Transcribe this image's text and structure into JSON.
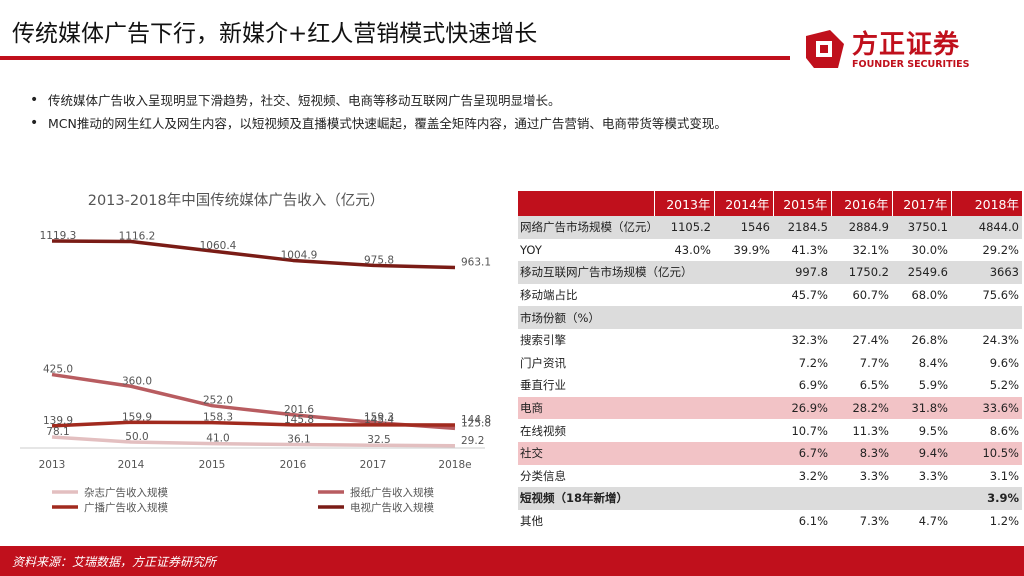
{
  "slide": {
    "title": "传统媒体广告下行，新媒介+红人营销模式快速增长",
    "bullets": [
      "传统媒体广告收入呈现明显下滑趋势，社交、短视频、电商等移动互联网广告呈现明显增长。",
      "MCN推动的网生红人及网生内容，以短视频及直播模式快速崛起，覆盖全矩阵内容，通过广告营销、电商带货等模式变现。"
    ],
    "source": "资料来源：艾瑞数据，方正证券研究所"
  },
  "logo": {
    "name_cn": "方正证券",
    "name_en": "FOUNDER SECURITIES",
    "brand_color": "#c0101c"
  },
  "chart_data": {
    "type": "line",
    "title": "2013-2018年中国传统媒体广告收入（亿元）",
    "categories": [
      "2013",
      "2014",
      "2015",
      "2016",
      "2017",
      "2018e"
    ],
    "series": [
      {
        "name": "杂志广告收入规模",
        "color": "#e3bfc0",
        "values": [
          78.1,
          50.0,
          41.0,
          36.1,
          32.5,
          29.2
        ],
        "labels": [
          "78.1",
          "50.0",
          "41.0",
          "36.1",
          "32.5",
          "29.2"
        ]
      },
      {
        "name": "报纸广告收入规模",
        "color": "#b85c60",
        "values": [
          425.0,
          360.0,
          252.0,
          201.6,
          159.3,
          125.8
        ],
        "labels": [
          "425.0",
          "360.0",
          "252.0",
          "201.6",
          "159.3",
          "125.8"
        ]
      },
      {
        "name": "广播广告收入规模",
        "color": "#a12a1e",
        "values": [
          139.9,
          159.9,
          158.3,
          145.8,
          145.4,
          144.8
        ],
        "labels": [
          "139.9",
          "159.9",
          "158.3",
          "145.8",
          "145.4",
          "144.8"
        ]
      },
      {
        "name": "电视广告收入规模",
        "color": "#7a1c16",
        "values": [
          1119.3,
          1116.2,
          1060.4,
          1004.9,
          975.8,
          963.1
        ],
        "labels": [
          "1119.3",
          "1116.2",
          "1060.4",
          "1004.9",
          "975.8",
          "963.1"
        ]
      }
    ],
    "legend_position": "bottom",
    "grid": false
  },
  "table": {
    "columns": [
      "2013年",
      "2014年",
      "2015年",
      "2016年",
      "2017年",
      "2018年"
    ],
    "rows": [
      {
        "label": "网络广告市场规模（亿元）",
        "style": "gray",
        "values": [
          "1105.2",
          "1546",
          "2184.5",
          "2884.9",
          "3750.1",
          "4844.0"
        ]
      },
      {
        "label": "YOY",
        "style": "",
        "values": [
          "43.0%",
          "39.9%",
          "41.3%",
          "32.1%",
          "30.0%",
          "29.2%"
        ]
      },
      {
        "label": "移动互联网广告市场规模（亿元）",
        "style": "gray",
        "values": [
          "",
          "",
          "997.8",
          "1750.2",
          "2549.6",
          "3663"
        ]
      },
      {
        "label": "移动端占比",
        "style": "",
        "values": [
          "",
          "",
          "45.7%",
          "60.7%",
          "68.0%",
          "75.6%"
        ]
      },
      {
        "label": "市场份额（%）",
        "style": "gray",
        "values": [
          "",
          "",
          "",
          "",
          "",
          ""
        ]
      },
      {
        "label": "搜索引擎",
        "style": "",
        "values": [
          "",
          "",
          "32.3%",
          "27.4%",
          "26.8%",
          "24.3%"
        ]
      },
      {
        "label": "门户资讯",
        "style": "",
        "values": [
          "",
          "",
          "7.2%",
          "7.7%",
          "8.4%",
          "9.6%"
        ]
      },
      {
        "label": "垂直行业",
        "style": "",
        "values": [
          "",
          "",
          "6.9%",
          "6.5%",
          "5.9%",
          "5.2%"
        ]
      },
      {
        "label": "电商",
        "style": "pink",
        "values": [
          "",
          "",
          "26.9%",
          "28.2%",
          "31.8%",
          "33.6%"
        ]
      },
      {
        "label": "在线视频",
        "style": "",
        "values": [
          "",
          "",
          "10.7%",
          "11.3%",
          "9.5%",
          "8.6%"
        ]
      },
      {
        "label": "社交",
        "style": "pink",
        "values": [
          "",
          "",
          "6.7%",
          "8.3%",
          "9.4%",
          "10.5%"
        ]
      },
      {
        "label": "分类信息",
        "style": "",
        "values": [
          "",
          "",
          "3.2%",
          "3.3%",
          "3.3%",
          "3.1%"
        ]
      },
      {
        "label": "短视频（18年新增）",
        "style": "gray bold",
        "values": [
          "",
          "",
          "",
          "",
          "",
          "3.9%"
        ]
      },
      {
        "label": "其他",
        "style": "",
        "values": [
          "",
          "",
          "6.1%",
          "7.3%",
          "4.7%",
          "1.2%"
        ]
      }
    ]
  }
}
